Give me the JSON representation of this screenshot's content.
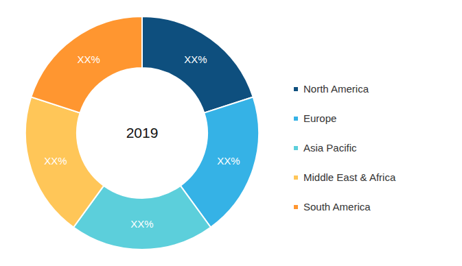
{
  "chart_data": {
    "type": "pie",
    "title": "2019",
    "categories": [
      "North America",
      "Europe",
      "Asia Pacific",
      "Middle East & Africa",
      "South America"
    ],
    "values": [
      20,
      20,
      20,
      20,
      20
    ],
    "value_labels": [
      "XX%",
      "XX%",
      "XX%",
      "XX%",
      "XX%"
    ],
    "colors": [
      "#0e4f7e",
      "#35b2e6",
      "#5ccfdb",
      "#ffc658",
      "#ff9630"
    ],
    "data_labels": true,
    "legend": "right"
  }
}
